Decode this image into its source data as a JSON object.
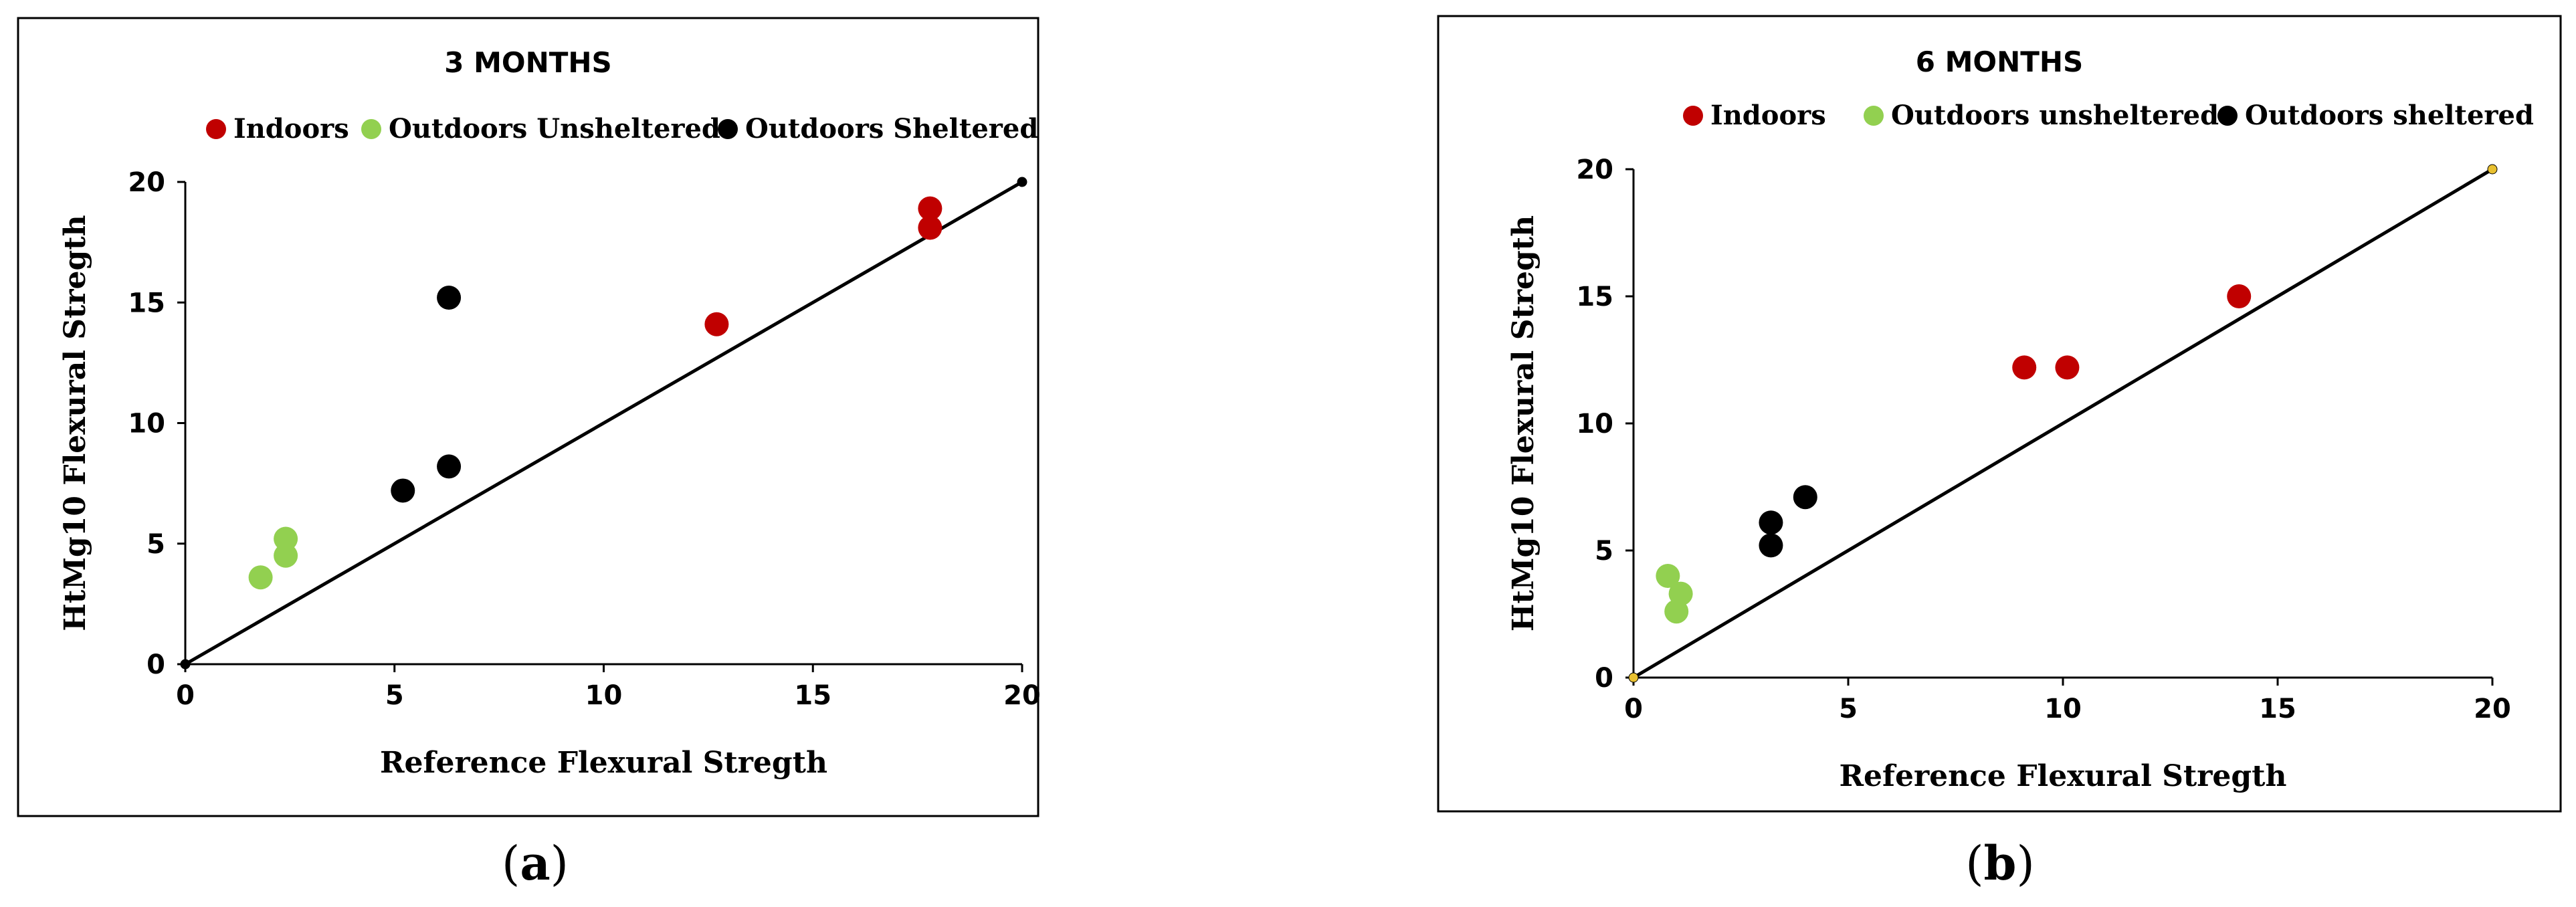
{
  "chart_data": [
    {
      "type": "scatter",
      "title": "3 MONTHS",
      "caption_letter": "a",
      "xlabel": "Reference Flexural Stregth",
      "ylabel": "HtMg10 Flexural Stregth",
      "xlim": [
        0,
        20
      ],
      "ylim": [
        0,
        20
      ],
      "xticks": [
        "0",
        "5",
        "10",
        "15",
        "20"
      ],
      "yticks": [
        "0",
        "5",
        "10",
        "15",
        "20"
      ],
      "grid": false,
      "legend_position": "top",
      "reference_line": {
        "x": [
          0,
          20
        ],
        "y": [
          0,
          20
        ],
        "color": "#000000"
      },
      "series": [
        {
          "name": "Indoors",
          "color": "#c00000",
          "points": [
            [
              12.7,
              14.1
            ],
            [
              17.8,
              18.9
            ],
            [
              17.8,
              18.1
            ]
          ]
        },
        {
          "name": "Outdoors Unsheltered",
          "color": "#92d050",
          "points": [
            [
              1.8,
              3.6
            ],
            [
              2.4,
              5.2
            ],
            [
              2.4,
              4.5
            ]
          ]
        },
        {
          "name": "Outdoors Sheltered",
          "color": "#000000",
          "points": [
            [
              5.2,
              7.2
            ],
            [
              6.3,
              15.2
            ],
            [
              6.3,
              8.2
            ]
          ]
        }
      ]
    },
    {
      "type": "scatter",
      "title": "6 MONTHS",
      "caption_letter": "b",
      "xlabel": "Reference Flexural Stregth",
      "ylabel": "HtMg10 Flexural Stregth",
      "xlim": [
        0,
        20
      ],
      "ylim": [
        0,
        20
      ],
      "xticks": [
        "0",
        "5",
        "10",
        "15",
        "20"
      ],
      "yticks": [
        "0",
        "5",
        "10",
        "15",
        "20"
      ],
      "grid": false,
      "legend_position": "top",
      "reference_line": {
        "x": [
          0,
          20
        ],
        "y": [
          0,
          20
        ],
        "color": "#000000"
      },
      "series": [
        {
          "name": "Indoors",
          "color": "#c00000",
          "points": [
            [
              9.1,
              12.2
            ],
            [
              10.1,
              12.2
            ],
            [
              14.1,
              15.0
            ]
          ]
        },
        {
          "name": "Outdoors unsheltered",
          "color": "#92d050",
          "points": [
            [
              0.8,
              4.0
            ],
            [
              1.1,
              3.3
            ],
            [
              1.0,
              2.6
            ]
          ]
        },
        {
          "name": "Outdoors sheltered",
          "color": "#000000",
          "points": [
            [
              3.2,
              6.1
            ],
            [
              3.2,
              5.2
            ],
            [
              4.0,
              7.1
            ]
          ]
        }
      ]
    }
  ]
}
